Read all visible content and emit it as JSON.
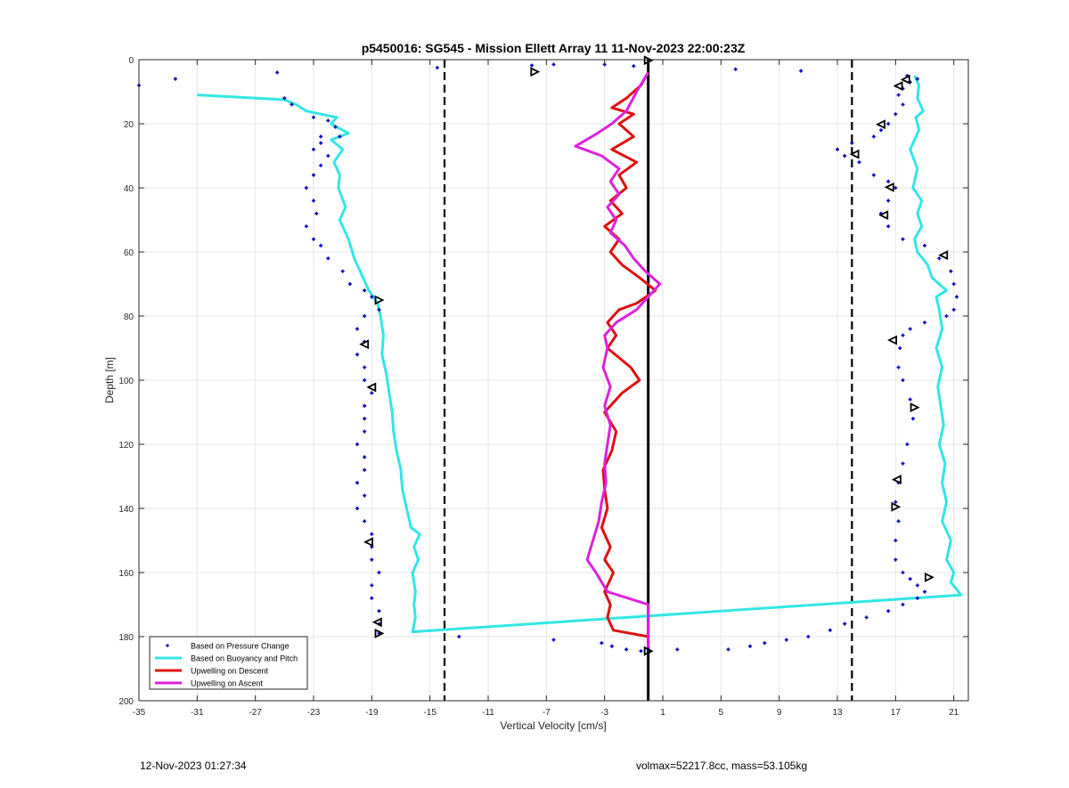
{
  "footer": {
    "timestamp": "12-Nov-2023 01:27:34",
    "info": "volmax=52217.8cc, mass=53.105kg"
  },
  "chart_data": {
    "type": "scatter",
    "title": "p5450016: SG545 - Mission Ellett Array 11 11-Nov-2023 22:00:23Z",
    "xlabel": "Vertical Velocity [cm/s]",
    "ylabel": "Depth [m]",
    "xlim": [
      -35,
      22
    ],
    "ylim": [
      0,
      200
    ],
    "y_reversed": true,
    "grid": true,
    "xticks": [
      -35,
      -31,
      -27,
      -23,
      -19,
      -15,
      -11,
      -7,
      -3,
      1,
      5,
      9,
      13,
      17,
      21
    ],
    "yticks": [
      0,
      20,
      40,
      60,
      80,
      100,
      120,
      140,
      160,
      180,
      200
    ],
    "legend_position": "bottom-left",
    "colors": {
      "pressure": "#0000bb",
      "buoyancy": "#33e6e6",
      "descent": "#dd1111",
      "ascent": "#dd22dd"
    },
    "reference_lines": [
      {
        "x": 0.0,
        "style": "solid"
      },
      {
        "x": -14,
        "style": "dashed"
      },
      {
        "x": 14,
        "style": "dashed"
      }
    ],
    "series": [
      {
        "name": "Based on Pressure Change",
        "style": "points",
        "points": [
          [
            -35,
            8
          ],
          [
            -32.5,
            6
          ],
          [
            -25.5,
            4
          ],
          [
            -25,
            12
          ],
          [
            -24.5,
            14
          ],
          [
            -23,
            18
          ],
          [
            -22,
            19
          ],
          [
            -21.5,
            21
          ],
          [
            -22.5,
            24
          ],
          [
            -21.2,
            24
          ],
          [
            -22.5,
            26
          ],
          [
            -23,
            28
          ],
          [
            -22,
            30
          ],
          [
            -22.5,
            33
          ],
          [
            -23,
            36
          ],
          [
            -23.5,
            40
          ],
          [
            -23,
            44
          ],
          [
            -22.8,
            48
          ],
          [
            -23.5,
            52
          ],
          [
            -23,
            56
          ],
          [
            -22.5,
            58
          ],
          [
            -22,
            62
          ],
          [
            -21,
            66
          ],
          [
            -20.5,
            70
          ],
          [
            -19.5,
            72
          ],
          [
            -19,
            74
          ],
          [
            -18.5,
            78
          ],
          [
            -19.5,
            80
          ],
          [
            -20,
            84
          ],
          [
            -19.5,
            88
          ],
          [
            -20,
            92
          ],
          [
            -19.5,
            96
          ],
          [
            -19.5,
            100
          ],
          [
            -19,
            104
          ],
          [
            -19.5,
            108
          ],
          [
            -19.5,
            112
          ],
          [
            -19.5,
            116
          ],
          [
            -20,
            120
          ],
          [
            -19.5,
            124
          ],
          [
            -19.5,
            128
          ],
          [
            -20,
            132
          ],
          [
            -19.5,
            136
          ],
          [
            -20,
            140
          ],
          [
            -19.5,
            144
          ],
          [
            -19,
            148
          ],
          [
            -19,
            152
          ],
          [
            -19,
            156
          ],
          [
            -18.5,
            160
          ],
          [
            -19,
            164
          ],
          [
            -19,
            168
          ],
          [
            -18.5,
            172
          ],
          [
            -18.5,
            176
          ],
          [
            -18.5,
            179
          ],
          [
            -13,
            180
          ],
          [
            -6.5,
            181
          ],
          [
            -3.2,
            182
          ],
          [
            -2.5,
            183
          ],
          [
            -1.5,
            184
          ],
          [
            -0.5,
            184.5
          ],
          [
            0,
            184
          ],
          [
            2,
            184
          ],
          [
            5.5,
            184
          ],
          [
            7,
            183
          ],
          [
            8,
            182
          ],
          [
            9.5,
            181
          ],
          [
            11,
            180
          ],
          [
            12.5,
            178
          ],
          [
            13.5,
            176
          ],
          [
            15,
            174
          ],
          [
            16.5,
            172
          ],
          [
            17.5,
            170
          ],
          [
            18.5,
            168
          ],
          [
            19,
            166
          ],
          [
            18.5,
            164
          ],
          [
            18,
            162
          ],
          [
            17.5,
            160
          ],
          [
            17,
            156
          ],
          [
            17,
            150
          ],
          [
            17.2,
            144
          ],
          [
            17,
            138
          ],
          [
            17.2,
            132
          ],
          [
            17.5,
            126
          ],
          [
            17.8,
            120
          ],
          [
            18.2,
            112
          ],
          [
            18,
            106
          ],
          [
            17.5,
            100
          ],
          [
            17.2,
            96
          ],
          [
            17.3,
            90
          ],
          [
            17.5,
            86
          ],
          [
            18,
            84
          ],
          [
            19,
            82
          ],
          [
            20.5,
            80
          ],
          [
            21,
            78
          ],
          [
            21.2,
            74
          ],
          [
            21,
            70
          ],
          [
            20.8,
            66
          ],
          [
            20,
            62
          ],
          [
            19,
            58
          ],
          [
            17.5,
            56
          ],
          [
            16.5,
            52
          ],
          [
            16,
            48
          ],
          [
            16.5,
            44
          ],
          [
            17,
            40
          ],
          [
            16.5,
            38
          ],
          [
            15.5,
            36
          ],
          [
            14.5,
            32
          ],
          [
            13.5,
            30
          ],
          [
            13,
            28
          ],
          [
            14,
            26
          ],
          [
            15.5,
            24
          ],
          [
            16,
            22
          ],
          [
            16.5,
            20
          ],
          [
            17,
            17
          ],
          [
            17.5,
            14
          ],
          [
            17.2,
            11
          ],
          [
            17.5,
            9
          ],
          [
            18,
            7
          ],
          [
            18.5,
            6
          ],
          [
            17.8,
            5
          ],
          [
            10.5,
            3.5
          ],
          [
            6,
            3
          ],
          [
            -1,
            2
          ],
          [
            -3,
            1.5
          ],
          [
            -6.5,
            1.5
          ],
          [
            -8,
            1.8
          ],
          [
            -14.5,
            2.5
          ]
        ]
      },
      {
        "name": "Based on Buoyancy and Pitch",
        "style": "line",
        "points": [
          [
            -31,
            11
          ],
          [
            -25,
            12.5
          ],
          [
            -24.2,
            14
          ],
          [
            -23.5,
            16
          ],
          [
            -22.5,
            17
          ],
          [
            -21.4,
            18
          ],
          [
            -21.8,
            20
          ],
          [
            -20.6,
            23
          ],
          [
            -21.8,
            25
          ],
          [
            -21,
            28
          ],
          [
            -21.6,
            32
          ],
          [
            -21.2,
            36
          ],
          [
            -21.3,
            40
          ],
          [
            -20.8,
            46
          ],
          [
            -21.2,
            50
          ],
          [
            -20.6,
            56
          ],
          [
            -20.2,
            62
          ],
          [
            -19.6,
            68
          ],
          [
            -19.2,
            72
          ],
          [
            -18.6,
            76
          ],
          [
            -18.4,
            80
          ],
          [
            -18.2,
            86
          ],
          [
            -18.3,
            92
          ],
          [
            -18,
            98
          ],
          [
            -17.8,
            104
          ],
          [
            -17.6,
            110
          ],
          [
            -17.5,
            116
          ],
          [
            -17.3,
            122
          ],
          [
            -17,
            128
          ],
          [
            -16.9,
            134
          ],
          [
            -16.6,
            140
          ],
          [
            -16.3,
            146
          ],
          [
            -15.7,
            148
          ],
          [
            -16.1,
            152
          ],
          [
            -15.8,
            156
          ],
          [
            -16.2,
            160
          ],
          [
            -16,
            166
          ],
          [
            -16.1,
            170
          ],
          [
            -16,
            174
          ],
          [
            -16.2,
            178.5
          ],
          [
            21.5,
            167
          ],
          [
            20.8,
            163
          ],
          [
            21,
            160
          ],
          [
            20.5,
            156
          ],
          [
            20.8,
            150
          ],
          [
            20.2,
            144
          ],
          [
            20.5,
            138
          ],
          [
            20.2,
            132
          ],
          [
            20.4,
            126
          ],
          [
            20,
            120
          ],
          [
            20.3,
            114
          ],
          [
            20.1,
            108
          ],
          [
            19.9,
            102
          ],
          [
            20.2,
            96
          ],
          [
            19.8,
            90
          ],
          [
            20.2,
            84
          ],
          [
            20,
            78
          ],
          [
            19.8,
            74
          ],
          [
            20.5,
            72
          ],
          [
            19.5,
            68
          ],
          [
            19.2,
            64
          ],
          [
            18.5,
            60
          ],
          [
            18.3,
            56
          ],
          [
            18.8,
            52
          ],
          [
            18.5,
            48
          ],
          [
            18.8,
            44
          ],
          [
            18.2,
            40
          ],
          [
            18.5,
            34
          ],
          [
            18,
            28
          ],
          [
            18.6,
            22
          ],
          [
            18.4,
            18
          ],
          [
            18.9,
            16
          ],
          [
            18.5,
            12
          ],
          [
            18.6,
            8
          ],
          [
            18.3,
            5
          ]
        ]
      },
      {
        "name": "Upwelling on Descent",
        "style": "line",
        "points": [
          [
            0,
            4
          ],
          [
            -0.5,
            8
          ],
          [
            -1.5,
            12
          ],
          [
            -2.5,
            15
          ],
          [
            -1,
            17
          ],
          [
            -2,
            20
          ],
          [
            -1,
            24
          ],
          [
            -2.5,
            28
          ],
          [
            -0.8,
            32
          ],
          [
            -2,
            36
          ],
          [
            -1.5,
            40
          ],
          [
            -2.6,
            44
          ],
          [
            -1.8,
            48
          ],
          [
            -3,
            52
          ],
          [
            -2,
            56
          ],
          [
            -2.6,
            60
          ],
          [
            -1.8,
            64
          ],
          [
            -0.6,
            68
          ],
          [
            0.5,
            72
          ],
          [
            -0.8,
            76
          ],
          [
            -2,
            78
          ],
          [
            -2.8,
            82
          ],
          [
            -2.2,
            86
          ],
          [
            -2.8,
            90
          ],
          [
            -1.2,
            96
          ],
          [
            -0.6,
            100
          ],
          [
            -1.8,
            104
          ],
          [
            -3,
            110
          ],
          [
            -2.2,
            116
          ],
          [
            -2.5,
            122
          ],
          [
            -3.1,
            128
          ],
          [
            -3,
            134
          ],
          [
            -2.8,
            140
          ],
          [
            -3.2,
            146
          ],
          [
            -2.6,
            152
          ],
          [
            -3,
            156
          ],
          [
            -2.4,
            160
          ],
          [
            -3,
            166
          ],
          [
            -2.6,
            170
          ],
          [
            -2.8,
            174
          ],
          [
            -2.4,
            178
          ],
          [
            0,
            180
          ],
          [
            0,
            184
          ]
        ]
      },
      {
        "name": "Upwelling on Ascent",
        "style": "line",
        "points": [
          [
            0,
            4
          ],
          [
            -0.8,
            10
          ],
          [
            -1.5,
            16
          ],
          [
            -2.5,
            20
          ],
          [
            -3.5,
            23
          ],
          [
            -5,
            27
          ],
          [
            -3.2,
            30
          ],
          [
            -2,
            34
          ],
          [
            -2.6,
            38
          ],
          [
            -2,
            42
          ],
          [
            -2.8,
            46
          ],
          [
            -2.2,
            50
          ],
          [
            -2.6,
            54
          ],
          [
            -1.6,
            58
          ],
          [
            -1,
            62
          ],
          [
            -0.2,
            66
          ],
          [
            0.8,
            70
          ],
          [
            0,
            74
          ],
          [
            -0.8,
            78
          ],
          [
            -2.2,
            82
          ],
          [
            -3,
            86
          ],
          [
            -2.8,
            90
          ],
          [
            -3.1,
            96
          ],
          [
            -2.6,
            102
          ],
          [
            -3,
            108
          ],
          [
            -2.6,
            114
          ],
          [
            -2.8,
            120
          ],
          [
            -3,
            126
          ],
          [
            -2.9,
            132
          ],
          [
            -3.2,
            138
          ],
          [
            -3.4,
            144
          ],
          [
            -3.8,
            150
          ],
          [
            -4.2,
            156
          ],
          [
            -3.6,
            160
          ],
          [
            -2.8,
            166
          ],
          [
            0,
            170
          ],
          [
            0,
            184
          ]
        ]
      }
    ],
    "markers": {
      "style": "triangle",
      "points": [
        [
          0,
          0.2,
          "right"
        ],
        [
          -7.8,
          3.8,
          "right"
        ],
        [
          17.7,
          6.2,
          "left"
        ],
        [
          17.2,
          8.2,
          "left"
        ],
        [
          16,
          20.2,
          "left"
        ],
        [
          14.2,
          29.5,
          "left"
        ],
        [
          16.6,
          39.8,
          "left"
        ],
        [
          16.2,
          48.5,
          "left"
        ],
        [
          20.3,
          61,
          "left"
        ],
        [
          -18.5,
          75,
          "right"
        ],
        [
          16.8,
          87.5,
          "left"
        ],
        [
          -19.5,
          88.8,
          "left"
        ],
        [
          -19,
          102.2,
          "left"
        ],
        [
          18.3,
          108.5,
          "right"
        ],
        [
          17.1,
          131,
          "left"
        ],
        [
          17,
          139.5,
          "right"
        ],
        [
          -19.2,
          150.5,
          "left"
        ],
        [
          19.3,
          161.5,
          "right"
        ],
        [
          -18.6,
          175.5,
          "left"
        ],
        [
          -18.5,
          179,
          "right"
        ],
        [
          0,
          184.5,
          "right"
        ]
      ]
    }
  }
}
